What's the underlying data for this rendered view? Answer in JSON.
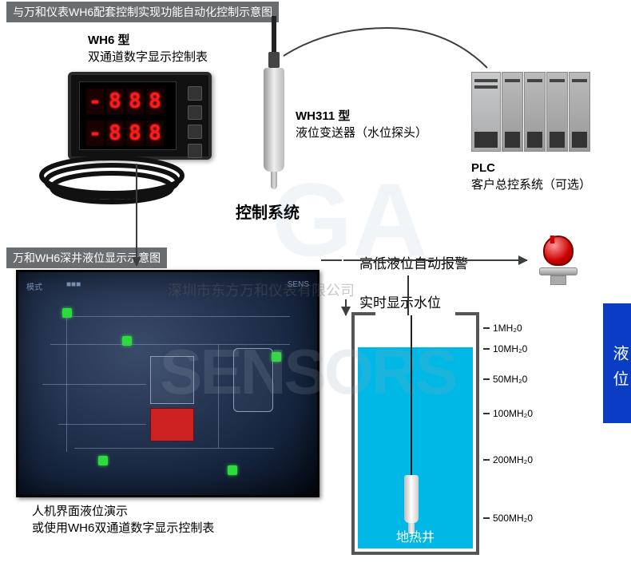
{
  "headers": {
    "top": "与万和仪表WH6配套控制实现功能自动化控制示意图",
    "mid": "万和WH6深井液位显示示意图"
  },
  "wh6": {
    "model": "WH6 型",
    "desc": "双通道数字显示控制表",
    "row1": [
      "-",
      "8",
      "8",
      "8"
    ],
    "row2": [
      "-",
      "8",
      "8",
      "8"
    ]
  },
  "wh311": {
    "model": "WH311 型",
    "desc": "液位变送器（水位探头）"
  },
  "control_system": "控制系统",
  "plc": {
    "title": "PLC",
    "desc": "客户总控系统（可选）"
  },
  "alarm_label": "高低液位自动报警",
  "realtime_label": "实时显示水位",
  "screenshot": {
    "caption1": "人机界面液位演示",
    "caption2": "或使用WH6双通道数字显示控制表"
  },
  "well": {
    "label": "地热井",
    "ticks": [
      {
        "pos": 3,
        "label": "1MH₂0"
      },
      {
        "pos": 12,
        "label": "10MH₂0"
      },
      {
        "pos": 25,
        "label": "50MH₂0"
      },
      {
        "pos": 40,
        "label": "100MH₂0"
      },
      {
        "pos": 60,
        "label": "200MH₂0"
      },
      {
        "pos": 85,
        "label": "500MH₂0"
      }
    ]
  },
  "side_tab": "液位",
  "watermark_company": "深圳市东方万和仪表有限公司",
  "watermark_brand": "SENSORS",
  "colors": {
    "header_bg": "#6a6d6f",
    "water": "#00b8e6",
    "alarm": "#cc0000",
    "side_tab": "#0a3cc4",
    "digit_red": "#ff1a1a"
  }
}
